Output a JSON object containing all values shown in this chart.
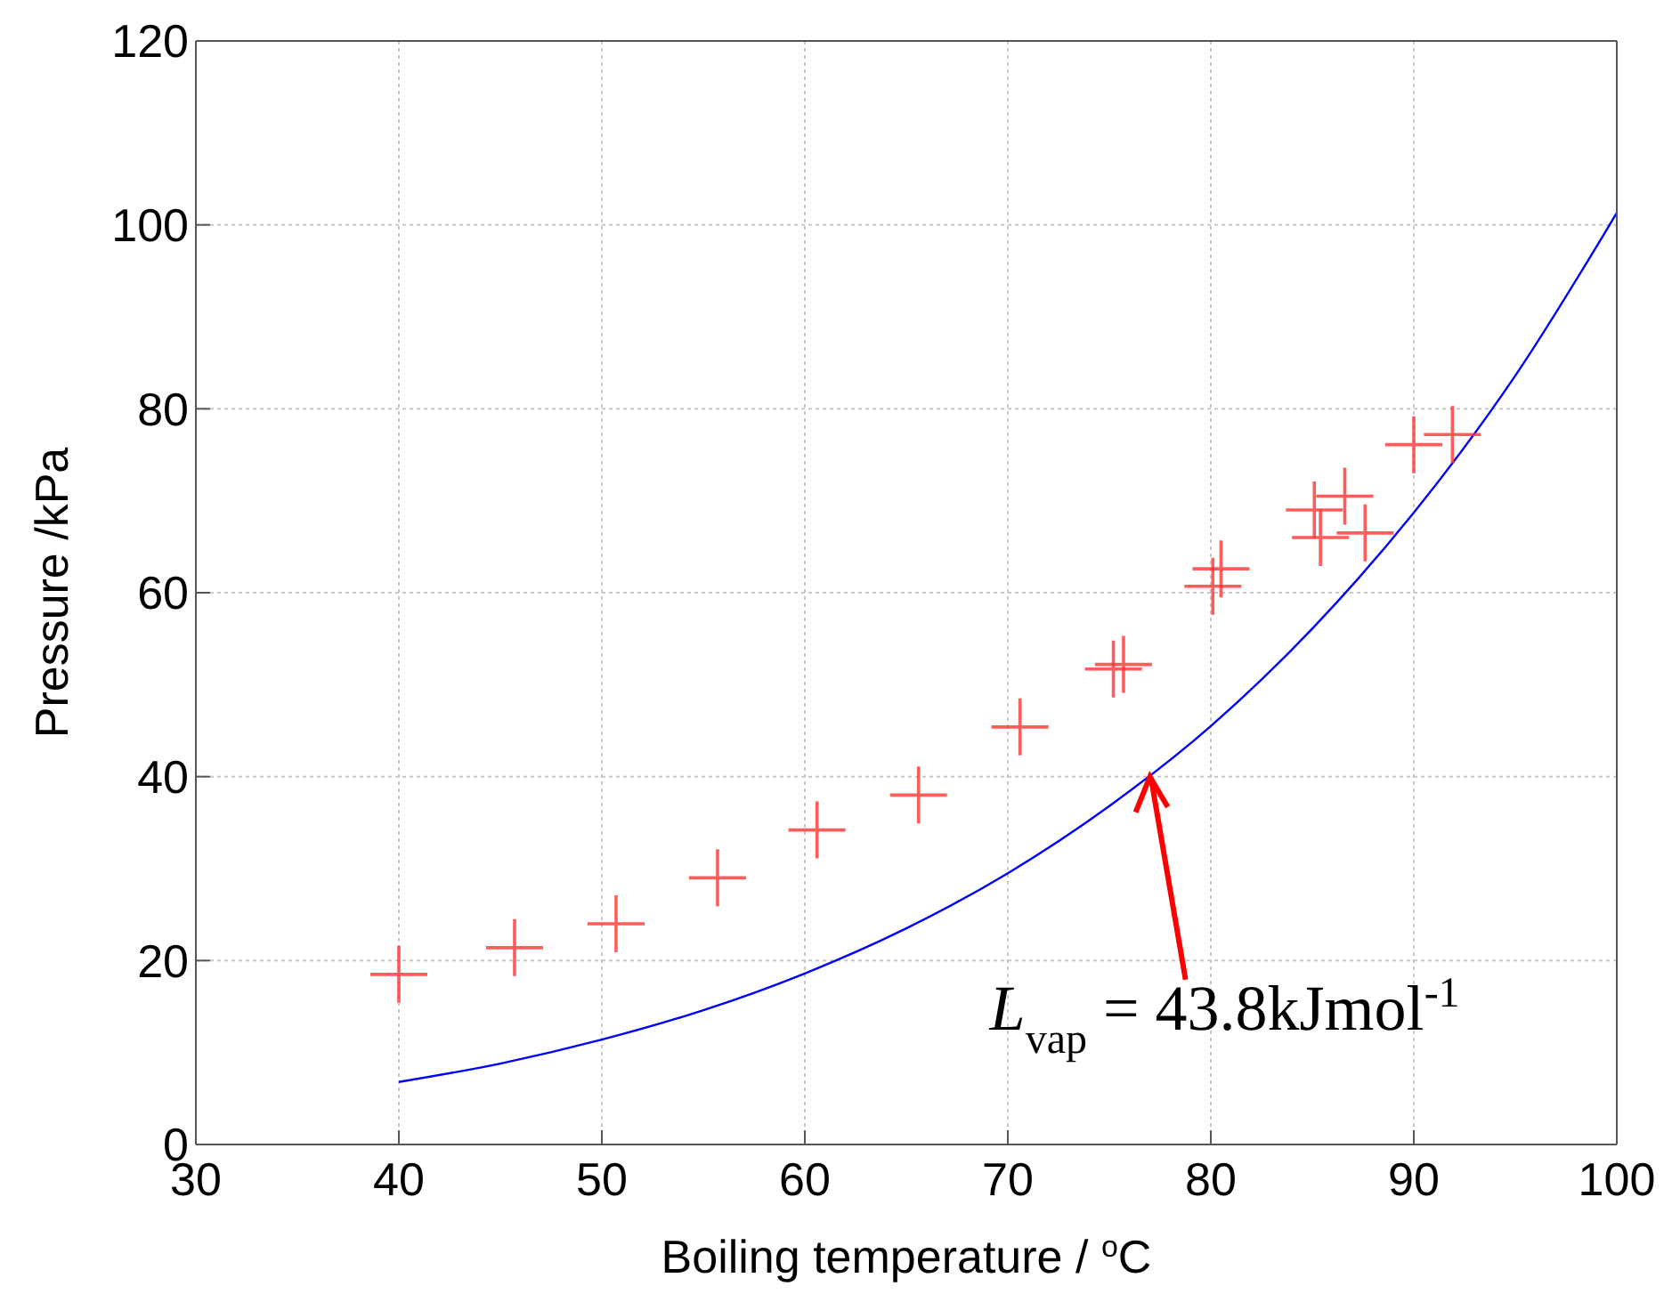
{
  "chart_data": {
    "type": "scatter",
    "xlabel": "Boiling temperature / $^{o}$C",
    "ylabel": "Pressure /kPa",
    "series": [
      {
        "color": "#ff3333",
        "marker": "cross",
        "x": [
          40,
          45.7,
          50.7,
          55.7,
          60.6,
          65.6,
          70.6,
          75.2,
          75.7,
          80.1,
          80.5,
          85.1,
          85.4,
          86.6,
          87.6,
          90.0,
          91.9
        ],
        "values": [
          18.5,
          21.4,
          24,
          29,
          34.2,
          38,
          45.4,
          51.7,
          52.2,
          60.7,
          62.6,
          69,
          66,
          70.5,
          66.5,
          76.1,
          77.2
        ]
      },
      {
        "type": "line",
        "color": "#0000ff",
        "marker": "none",
        "x": [
          40,
          45,
          50,
          55,
          60,
          65,
          70,
          75,
          80,
          85,
          90,
          95,
          100
        ],
        "values": [
          6.8,
          8.8,
          11.4,
          14.6,
          18.6,
          23.5,
          29.5,
          36.8,
          45.5,
          56.1,
          68.7,
          83.6,
          101.3
        ]
      }
    ],
    "xlim": [
      30,
      100
    ],
    "xticks": [
      30,
      40,
      50,
      60,
      70,
      80,
      90,
      100
    ],
    "ylim": [
      0,
      120
    ],
    "yticks": [
      0,
      20,
      40,
      60,
      80,
      100,
      120
    ],
    "grid": true,
    "annotations": [
      {
        "text": "L$_{vap}$ = 43.8kJmol$^{-1}$",
        "x": 77,
        "y": 40
      }
    ]
  }
}
